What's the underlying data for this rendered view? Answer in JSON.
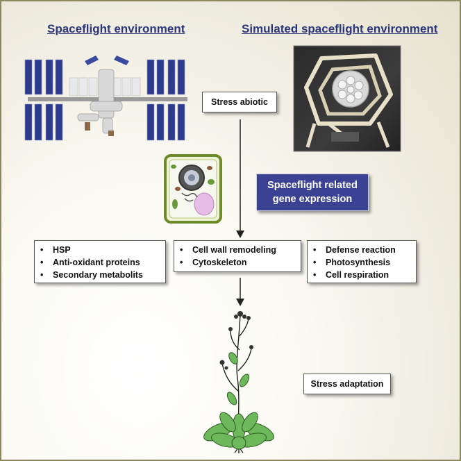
{
  "headings": {
    "left": "Spaceflight environment",
    "right": "Simulated spaceflight environment"
  },
  "stress_abiotic": "Stress abiotic",
  "gene_expression": {
    "line1": "Spaceflight related",
    "line2": "gene expression"
  },
  "left_list": [
    "HSP",
    "Anti-oxidant proteins",
    "Secondary metabolits"
  ],
  "center_list": [
    "Cell wall remodeling",
    "Cytoskeleton"
  ],
  "right_list": [
    "Defense reaction",
    "Photosynthesis",
    "Cell respiration"
  ],
  "stress_adaptation": "Stress adaptation",
  "colors": {
    "heading": "#2b3578",
    "gene_box": "#3b4294",
    "solar_panel": "#2e3a8c",
    "plant_leaf": "#6cb85a",
    "frame_border": "#8a8660"
  },
  "icons": {
    "station": "space-station-illustration",
    "clinostat": "clinostat-photo",
    "cell": "plant-cell-illustration",
    "plant": "arabidopsis-plant-illustration"
  }
}
